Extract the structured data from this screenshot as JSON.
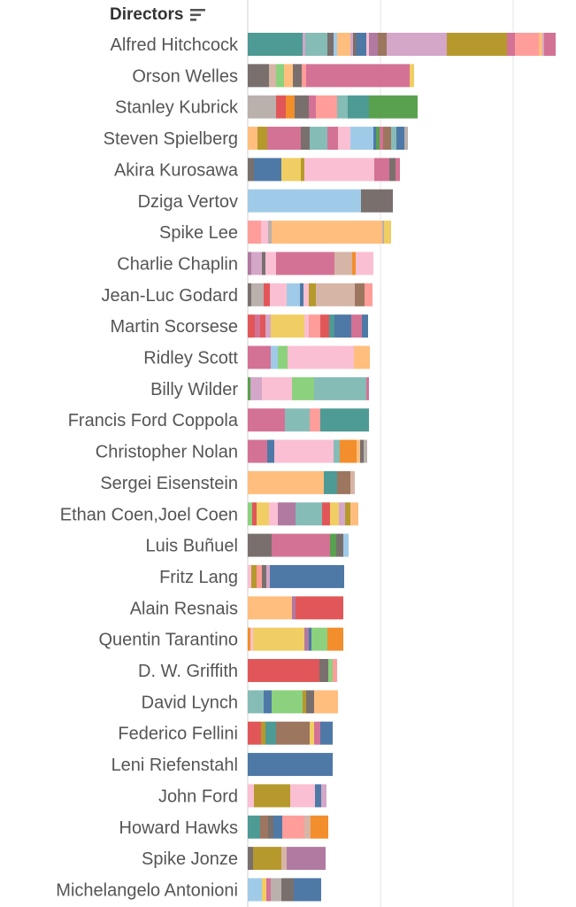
{
  "header": {
    "label": "Directors",
    "sort_icon": "sort-descending-icon"
  },
  "palette": [
    "#4e9a94",
    "#f1ce63",
    "#e15759",
    "#d37295",
    "#a0cbe8",
    "#ffbe7d",
    "#86bcb6",
    "#8cd17d",
    "#b6992d",
    "#79706e",
    "#f28e2b",
    "#9d7660",
    "#b07aa1",
    "#fabfd2",
    "#4e79a7",
    "#d4a6c8",
    "#59a14f",
    "#bab0ac",
    "#d7b5a6",
    "#ff9d9a",
    "#499894"
  ],
  "chart_data": {
    "type": "bar",
    "stacked": true,
    "orientation": "horizontal",
    "categories": [
      "Alfred Hitchcock",
      "Orson Welles",
      "Stanley Kubrick",
      "Steven Spielberg",
      "Akira Kurosawa",
      "Dziga Vertov",
      "Spike Lee",
      "Charlie Chaplin",
      "Jean-Luc Godard",
      "Martin Scorsese",
      "Ridley Scott",
      "Billy Wilder",
      "Francis Ford Coppola",
      "Christopher Nolan",
      "Sergei Eisenstein",
      "Ethan Coen,Joel Coen",
      "Luis Buñuel",
      "Fritz Lang",
      "Alain Resnais",
      "Quentin Tarantino",
      "D. W. Griffith",
      "David Lynch",
      "Federico Fellini",
      "Leni Riefenstahl",
      "John Ford",
      "Howard Hawks",
      "Spike Jonze",
      "Michelangelo Antonioni"
    ],
    "gridlines": [
      0,
      150,
      300
    ],
    "segments": [
      [
        [
          62,
          "#4e9a94"
        ],
        [
          3,
          "#d4a6c8"
        ],
        [
          25,
          "#86bcb6"
        ],
        [
          7,
          "#79706e"
        ],
        [
          4,
          "#a0cbe8"
        ],
        [
          15,
          "#ffbe7d"
        ],
        [
          3,
          "#d4a6c8"
        ],
        [
          4,
          "#79706e"
        ],
        [
          11,
          "#4e79a7"
        ],
        [
          3,
          "#fabfd2"
        ],
        [
          10,
          "#b07aa1"
        ],
        [
          10,
          "#9d7660"
        ],
        [
          68,
          "#d4a6c8"
        ],
        [
          68,
          "#b6992d"
        ],
        [
          9,
          "#d37295"
        ],
        [
          27,
          "#ff9d9a"
        ],
        [
          4,
          "#ffbe7d"
        ],
        [
          2,
          "#d4a6c8"
        ],
        [
          13,
          "#d37295"
        ]
      ],
      [
        [
          24,
          "#79706e"
        ],
        [
          8,
          "#d7b5a6"
        ],
        [
          9,
          "#8cd17d"
        ],
        [
          10,
          "#ffbe7d"
        ],
        [
          10,
          "#79706e"
        ],
        [
          5,
          "#ff9d9a"
        ],
        [
          117,
          "#d37295"
        ],
        [
          5,
          "#f1ce63"
        ]
      ],
      [
        [
          32,
          "#bab0ac"
        ],
        [
          11,
          "#e15759"
        ],
        [
          10,
          "#f28e2b"
        ],
        [
          16,
          "#79706e"
        ],
        [
          8,
          "#d37295"
        ],
        [
          24,
          "#ff9d9a"
        ],
        [
          12,
          "#86bcb6"
        ],
        [
          24,
          "#4e9a94"
        ],
        [
          55,
          "#59a14f"
        ]
      ],
      [
        [
          11,
          "#ffbe7d"
        ],
        [
          11,
          "#b6992d"
        ],
        [
          38,
          "#d37295"
        ],
        [
          10,
          "#79706e"
        ],
        [
          20,
          "#86bcb6"
        ],
        [
          12,
          "#d37295"
        ],
        [
          14,
          "#fabfd2"
        ],
        [
          26,
          "#a0cbe8"
        ],
        [
          3,
          "#4e79a7"
        ],
        [
          4,
          "#59a14f"
        ],
        [
          4,
          "#d37295"
        ],
        [
          9,
          "#9d7660"
        ],
        [
          6,
          "#86bcb6"
        ],
        [
          9,
          "#4e79a7"
        ],
        [
          4,
          "#bab0ac"
        ]
      ],
      [
        [
          7,
          "#79706e"
        ],
        [
          31,
          "#4e79a7"
        ],
        [
          22,
          "#f1ce63"
        ],
        [
          4,
          "#b6992d"
        ],
        [
          79,
          "#fabfd2"
        ],
        [
          17,
          "#d37295"
        ],
        [
          7,
          "#79706e"
        ],
        [
          5,
          "#d37295"
        ]
      ],
      [
        [
          128,
          "#a0cbe8"
        ],
        [
          36,
          "#79706e"
        ]
      ],
      [
        [
          15,
          "#ff9d9a"
        ],
        [
          8,
          "#fabfd2"
        ],
        [
          4,
          "#bab0ac"
        ],
        [
          125,
          "#ffbe7d"
        ],
        [
          2,
          "#bab0ac"
        ],
        [
          8,
          "#f1ce63"
        ]
      ],
      [
        [
          4,
          "#b07aa1"
        ],
        [
          12,
          "#d4a6c8"
        ],
        [
          4,
          "#79706e"
        ],
        [
          12,
          "#fabfd2"
        ],
        [
          66,
          "#d37295"
        ],
        [
          20,
          "#d7b5a6"
        ],
        [
          4,
          "#f28e2b"
        ],
        [
          20,
          "#fabfd2"
        ]
      ],
      [
        [
          4,
          "#79706e"
        ],
        [
          14,
          "#bab0ac"
        ],
        [
          7,
          "#e15759"
        ],
        [
          19,
          "#fabfd2"
        ],
        [
          15,
          "#a0cbe8"
        ],
        [
          4,
          "#4e79a7"
        ],
        [
          6,
          "#fabfd2"
        ],
        [
          8,
          "#b6992d"
        ],
        [
          44,
          "#d7b5a6"
        ],
        [
          11,
          "#9d7660"
        ],
        [
          9,
          "#ff9d9a"
        ]
      ],
      [
        [
          8,
          "#e15759"
        ],
        [
          6,
          "#d37295"
        ],
        [
          6,
          "#e15759"
        ],
        [
          6,
          "#d4a6c8"
        ],
        [
          38,
          "#f1ce63"
        ],
        [
          5,
          "#fabfd2"
        ],
        [
          13,
          "#ff9d9a"
        ],
        [
          10,
          "#e15759"
        ],
        [
          6,
          "#4e9a94"
        ],
        [
          19,
          "#4e79a7"
        ],
        [
          12,
          "#d37295"
        ],
        [
          7,
          "#4e79a7"
        ]
      ],
      [
        [
          26,
          "#d37295"
        ],
        [
          8,
          "#a0cbe8"
        ],
        [
          11,
          "#8cd17d"
        ],
        [
          75,
          "#fabfd2"
        ],
        [
          18,
          "#ffbe7d"
        ]
      ],
      [
        [
          3,
          "#59a14f"
        ],
        [
          13,
          "#d4a6c8"
        ],
        [
          34,
          "#fabfd2"
        ],
        [
          25,
          "#8cd17d"
        ],
        [
          59,
          "#86bcb6"
        ],
        [
          3,
          "#d37295"
        ]
      ],
      [
        [
          42,
          "#d37295"
        ],
        [
          28,
          "#86bcb6"
        ],
        [
          12,
          "#ff9d9a"
        ],
        [
          55,
          "#4e9a94"
        ]
      ],
      [
        [
          22,
          "#d37295"
        ],
        [
          8,
          "#4e79a7"
        ],
        [
          67,
          "#fabfd2"
        ],
        [
          7,
          "#86bcb6"
        ],
        [
          19,
          "#f28e2b"
        ],
        [
          4,
          "#ffbe7d"
        ],
        [
          4,
          "#79706e"
        ],
        [
          4,
          "#bab0ac"
        ]
      ],
      [
        [
          86,
          "#ffbe7d"
        ],
        [
          15,
          "#4e9a94"
        ],
        [
          15,
          "#9d7660"
        ],
        [
          5,
          "#d7b5a6"
        ]
      ],
      [
        [
          5,
          "#8cd17d"
        ],
        [
          5,
          "#e15759"
        ],
        [
          14,
          "#f1ce63"
        ],
        [
          10,
          "#fabfd2"
        ],
        [
          20,
          "#b07aa1"
        ],
        [
          30,
          "#86bcb6"
        ],
        [
          9,
          "#e15759"
        ],
        [
          10,
          "#f1ce63"
        ],
        [
          7,
          "#d4a6c8"
        ],
        [
          6,
          "#b6992d"
        ],
        [
          9,
          "#ffbe7d"
        ]
      ],
      [
        [
          27,
          "#79706e"
        ],
        [
          66,
          "#d37295"
        ],
        [
          7,
          "#59a14f"
        ],
        [
          8,
          "#79706e"
        ],
        [
          6,
          "#a0cbe8"
        ]
      ],
      [
        [
          4,
          "#fabfd2"
        ],
        [
          6,
          "#b6992d"
        ],
        [
          6,
          "#ff9d9a"
        ],
        [
          5,
          "#79706e"
        ],
        [
          4,
          "#d4a6c8"
        ],
        [
          84,
          "#4e79a7"
        ]
      ],
      [
        [
          50,
          "#ffbe7d"
        ],
        [
          4,
          "#b07aa1"
        ],
        [
          54,
          "#e15759"
        ]
      ],
      [
        [
          3,
          "#f28e2b"
        ],
        [
          3,
          "#fabfd2"
        ],
        [
          58,
          "#f1ce63"
        ],
        [
          5,
          "#b07aa1"
        ],
        [
          3,
          "#4e79a7"
        ],
        [
          18,
          "#8cd17d"
        ],
        [
          18,
          "#f28e2b"
        ]
      ],
      [
        [
          3,
          "#e15759"
        ],
        [
          78,
          "#e15759"
        ],
        [
          10,
          "#79706e"
        ],
        [
          5,
          "#8cd17d"
        ],
        [
          5,
          "#ff9d9a"
        ]
      ],
      [
        [
          18,
          "#86bcb6"
        ],
        [
          9,
          "#4e79a7"
        ],
        [
          35,
          "#8cd17d"
        ],
        [
          4,
          "#b6992d"
        ],
        [
          9,
          "#79706e"
        ],
        [
          27,
          "#ffbe7d"
        ]
      ],
      [
        [
          15,
          "#e15759"
        ],
        [
          5,
          "#b6992d"
        ],
        [
          12,
          "#4e9a94"
        ],
        [
          38,
          "#9d7660"
        ],
        [
          5,
          "#f1ce63"
        ],
        [
          7,
          "#d37295"
        ],
        [
          14,
          "#4e79a7"
        ]
      ],
      [
        [
          96,
          "#4e79a7"
        ]
      ],
      [
        [
          7,
          "#fabfd2"
        ],
        [
          41,
          "#b6992d"
        ],
        [
          28,
          "#fabfd2"
        ],
        [
          7,
          "#4e79a7"
        ],
        [
          6,
          "#d4a6c8"
        ]
      ],
      [
        [
          14,
          "#4e9a94"
        ],
        [
          9,
          "#9d7660"
        ],
        [
          6,
          "#79706e"
        ],
        [
          10,
          "#4e79a7"
        ],
        [
          25,
          "#ff9d9a"
        ],
        [
          7,
          "#d7b5a6"
        ],
        [
          20,
          "#f28e2b"
        ]
      ],
      [
        [
          6,
          "#79706e"
        ],
        [
          32,
          "#b6992d"
        ],
        [
          6,
          "#d7b5a6"
        ],
        [
          44,
          "#b07aa1"
        ]
      ],
      [
        [
          16,
          "#a0cbe8"
        ],
        [
          5,
          "#f1ce63"
        ],
        [
          5,
          "#d37295"
        ],
        [
          12,
          "#bab0ac"
        ],
        [
          14,
          "#79706e"
        ],
        [
          31,
          "#4e79a7"
        ]
      ]
    ]
  }
}
